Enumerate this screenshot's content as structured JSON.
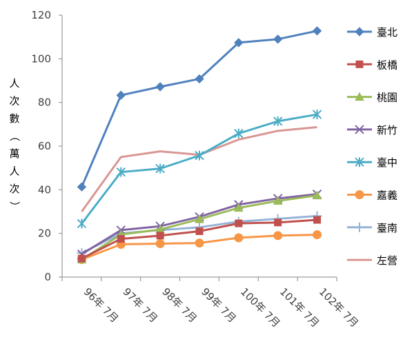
{
  "chart_data": {
    "type": "line",
    "title": "",
    "xlabel": "",
    "ylabel": "人次數（萬人次）",
    "ylim": [
      0,
      120
    ],
    "yticks": [
      0,
      20,
      40,
      60,
      80,
      100,
      120
    ],
    "grid": false,
    "legend_position": "right",
    "categories": [
      "96年 7月",
      "97年 7月",
      "98年 7月",
      "99年 7月",
      "100年 7月",
      "101年 7月",
      "102年 7月"
    ],
    "series": [
      {
        "name": "臺北",
        "color": "#4F81BD",
        "marker": "diamond",
        "values": [
          41.3,
          83.3,
          87.2,
          90.8,
          107.4,
          109.0,
          112.8
        ]
      },
      {
        "name": "板橋",
        "color": "#C0504D",
        "marker": "square",
        "values": [
          8.5,
          17.5,
          19.0,
          21.0,
          24.6,
          25.0,
          26.2
        ]
      },
      {
        "name": "桃園",
        "color": "#9BBB59",
        "marker": "triangle",
        "values": [
          8.0,
          19.5,
          21.8,
          26.5,
          31.7,
          34.9,
          37.4
        ]
      },
      {
        "name": "新竹",
        "color": "#8064A2",
        "marker": "x",
        "values": [
          10.5,
          21.5,
          23.3,
          27.6,
          33.2,
          36.0,
          38.0
        ]
      },
      {
        "name": "臺中",
        "color": "#4BACC6",
        "marker": "star",
        "values": [
          24.5,
          48.1,
          49.7,
          55.7,
          65.8,
          71.4,
          74.5
        ]
      },
      {
        "name": "嘉義",
        "color": "#F79646",
        "marker": "circle",
        "values": [
          8.0,
          15.0,
          15.3,
          15.6,
          18.0,
          19.0,
          19.4
        ]
      },
      {
        "name": "臺南",
        "color": "#95B3D7",
        "marker": "plus",
        "values": [
          11.0,
          20.0,
          21.5,
          22.8,
          25.4,
          26.7,
          28.0
        ]
      },
      {
        "name": "左營",
        "color": "#D99694",
        "marker": "none",
        "values": [
          30.0,
          55.0,
          57.6,
          56.0,
          63.0,
          67.0,
          68.7
        ]
      }
    ]
  }
}
